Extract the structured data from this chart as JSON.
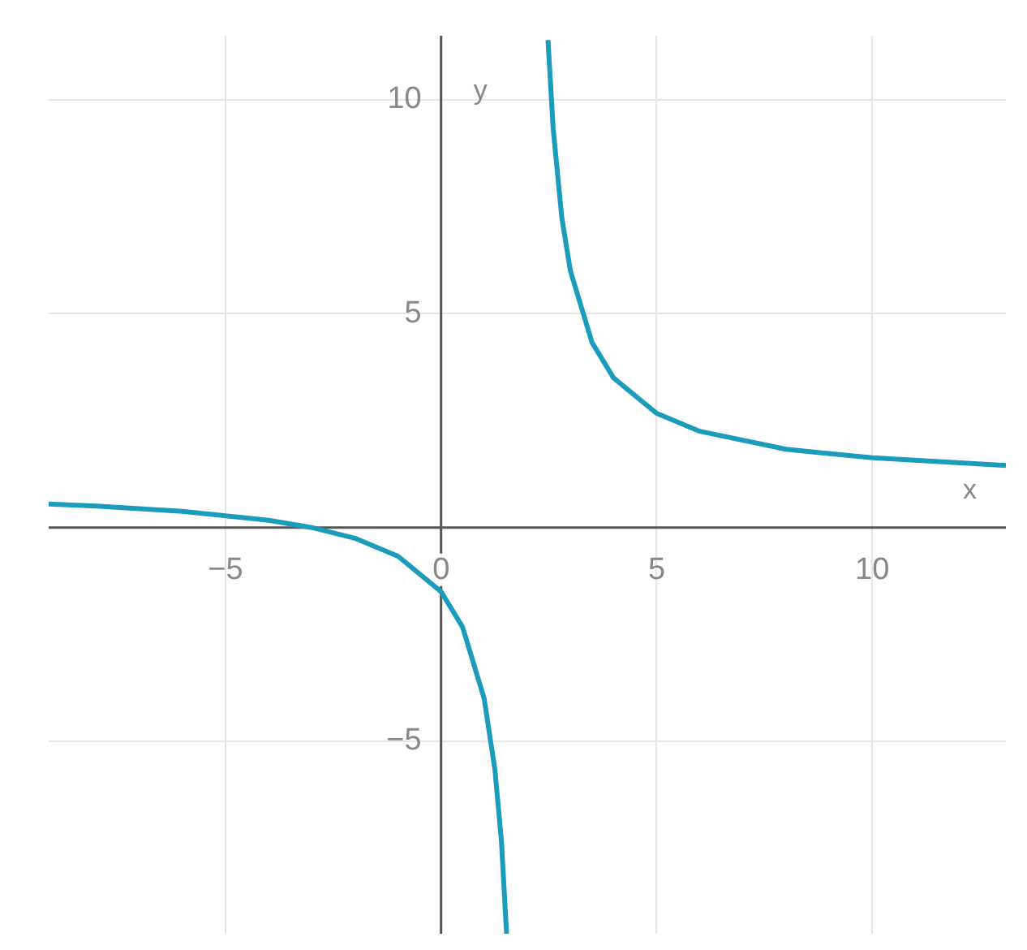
{
  "chart_data": {
    "type": "line",
    "xlabel": "x",
    "ylabel": "y",
    "x": [
      -9.1,
      -8,
      -6,
      -4,
      -3,
      -2,
      -1,
      0,
      0.5,
      1,
      1.25,
      1.4,
      1.52,
      2,
      2.48,
      2.6,
      2.8,
      3,
      3.5,
      4,
      5,
      6,
      8,
      10,
      13.1
    ],
    "series": [
      {
        "color": "#1a9cba",
        "values": [
          0.55,
          0.5,
          0.38,
          0.17,
          0,
          -0.25,
          -0.67,
          -1.5,
          -2.33,
          -4,
          -5.67,
          -7.33,
          -9.5,
          null,
          11.4,
          9.33,
          7.25,
          6,
          4.33,
          3.5,
          2.67,
          2.25,
          1.83,
          1.63,
          1.45
        ]
      }
    ],
    "xlim": [
      -9.1,
      13.1
    ],
    "ylim": [
      -9.5,
      11.5
    ],
    "xticks": [
      -5,
      0,
      5,
      10
    ],
    "yticks": [
      -5,
      5,
      10
    ],
    "grid": true,
    "legend": false,
    "marker": "none",
    "line_style": "solid"
  }
}
